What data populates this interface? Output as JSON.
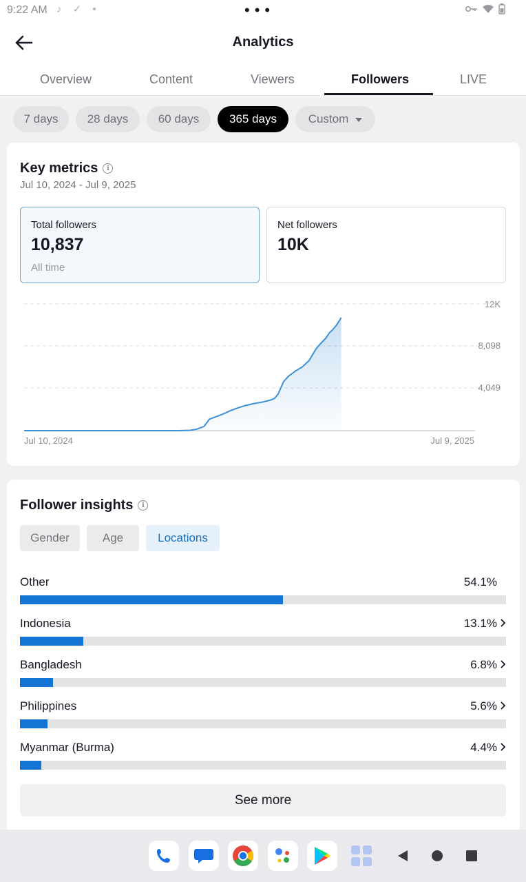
{
  "status_bar": {
    "time": "9:22 AM"
  },
  "header": {
    "title": "Analytics"
  },
  "tabs": [
    {
      "label": "Overview"
    },
    {
      "label": "Content"
    },
    {
      "label": "Viewers"
    },
    {
      "label": "Followers",
      "active": true
    },
    {
      "label": "LIVE"
    }
  ],
  "periods": [
    {
      "label": "7 days"
    },
    {
      "label": "28 days"
    },
    {
      "label": "60 days"
    },
    {
      "label": "365 days",
      "selected": true
    },
    {
      "label": "Custom"
    }
  ],
  "key_metrics": {
    "title": "Key metrics",
    "date_range": "Jul 10, 2024 - Jul 9, 2025",
    "total_followers": {
      "label": "Total followers",
      "value": "10,837",
      "sub": "All time"
    },
    "net_followers": {
      "label": "Net followers",
      "value": "10K"
    }
  },
  "chart_data": {
    "type": "area",
    "title": "",
    "xlabel": "",
    "ylabel": "",
    "x_tick_labels": [
      "Jul 10, 2024",
      "Jul 9, 2025"
    ],
    "y_tick_labels": [
      "12K",
      "8,098",
      "4,049"
    ],
    "ylim": [
      0,
      12147
    ],
    "grid": true,
    "series": [
      {
        "x": [
          0,
          225,
          242,
          252,
          262,
          270,
          278,
          290,
          300,
          310,
          322,
          335,
          348,
          360,
          365,
          370,
          378,
          385,
          395,
          405,
          415,
          425,
          430,
          440,
          445,
          450,
          455,
          460,
          462
        ],
        "y": [
          0,
          0,
          30,
          150,
          400,
          1100,
          1300,
          1600,
          1900,
          2150,
          2400,
          2600,
          2750,
          2950,
          3100,
          3500,
          4700,
          5200,
          5700,
          6100,
          6700,
          7800,
          8200,
          8900,
          9400,
          9700,
          10100,
          10600,
          10837
        ]
      }
    ],
    "accent_color": "#3d8fd6"
  },
  "follower_insights": {
    "title": "Follower insights",
    "segments": [
      {
        "label": "Gender"
      },
      {
        "label": "Age"
      },
      {
        "label": "Locations",
        "active": true
      }
    ],
    "locations": [
      {
        "name": "Other",
        "percent": "54.1%",
        "share": 54.1,
        "chevron": false
      },
      {
        "name": "Indonesia",
        "percent": "13.1%",
        "share": 13.1,
        "chevron": true
      },
      {
        "name": "Bangladesh",
        "percent": "6.8%",
        "share": 6.8,
        "chevron": true
      },
      {
        "name": "Philippines",
        "percent": "5.6%",
        "share": 5.6,
        "chevron": true
      },
      {
        "name": "Myanmar (Burma)",
        "percent": "4.4%",
        "share": 4.4,
        "chevron": true
      }
    ],
    "see_more": "See more"
  },
  "colors": {
    "bar_fill": "#1374d6",
    "selected_chip": "#000000",
    "active_segment_text": "#1670c3"
  }
}
